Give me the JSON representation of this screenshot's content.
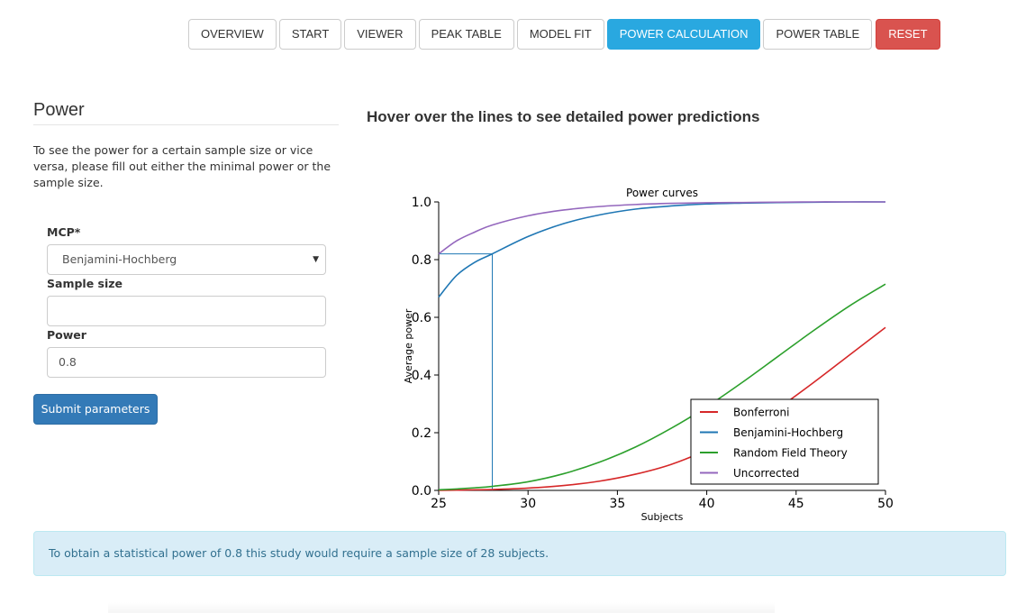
{
  "nav": {
    "items": [
      "OVERVIEW",
      "START",
      "VIEWER",
      "PEAK TABLE",
      "MODEL FIT",
      "POWER CALCULATION",
      "POWER TABLE",
      "RESET"
    ],
    "active": "POWER CALCULATION",
    "colors": {
      "active": "#29a8e0",
      "reset": "#d9534f"
    }
  },
  "panel": {
    "title": "Power",
    "description": "To see the power for a certain sample size or vice versa, please fill out either the minimal power or the sample size.",
    "mcp_label": "MCP*",
    "mcp_value": "Benjamini-Hochberg",
    "sample_size_label": "Sample size",
    "sample_size_value": "",
    "power_label": "Power",
    "power_value": "0.8",
    "submit_label": "Submit parameters"
  },
  "plot_heading": "Hover over the lines to see detailed power predictions",
  "chart_data": {
    "type": "line",
    "title": "Power curves",
    "xlabel": "Subjects",
    "ylabel": "Average power",
    "xlim": [
      25,
      50
    ],
    "ylim": [
      0,
      1
    ],
    "x_ticks": [
      "25",
      "30",
      "35",
      "40",
      "45",
      "50"
    ],
    "y_ticks": [
      "0.0",
      "0.2",
      "0.4",
      "0.6",
      "0.8",
      "1.0"
    ],
    "legend_position": "bottom-right",
    "grid": false,
    "x": [
      25,
      26,
      27,
      28,
      30,
      32,
      34,
      36,
      38,
      40,
      42,
      44,
      46,
      48,
      50
    ],
    "series": [
      {
        "name": "Bonferroni",
        "color": "#d62728",
        "values": [
          0.0,
          0.001,
          0.002,
          0.003,
          0.008,
          0.017,
          0.032,
          0.056,
          0.09,
          0.14,
          0.205,
          0.285,
          0.375,
          0.47,
          0.565
        ]
      },
      {
        "name": "Benjamini-Hochberg",
        "color": "#1f77b4",
        "values": [
          0.67,
          0.745,
          0.79,
          0.82,
          0.88,
          0.925,
          0.955,
          0.975,
          0.986,
          0.993,
          0.996,
          0.998,
          0.999,
          1.0,
          1.0
        ]
      },
      {
        "name": "Random Field Theory",
        "color": "#2ca02c",
        "values": [
          0.002,
          0.005,
          0.009,
          0.014,
          0.03,
          0.058,
          0.098,
          0.15,
          0.215,
          0.29,
          0.375,
          0.465,
          0.555,
          0.64,
          0.715
        ]
      },
      {
        "name": "Uncorrected",
        "color": "#9467bd",
        "values": [
          0.82,
          0.865,
          0.895,
          0.92,
          0.952,
          0.972,
          0.984,
          0.991,
          0.995,
          0.997,
          0.998,
          0.999,
          1.0,
          1.0,
          1.0
        ]
      }
    ],
    "reference": {
      "x": 28,
      "y": 0.82,
      "color": "#1f77b4"
    }
  },
  "result_text": "To obtain a statistical power of 0.8 this study would require a sample size of 28 subjects."
}
